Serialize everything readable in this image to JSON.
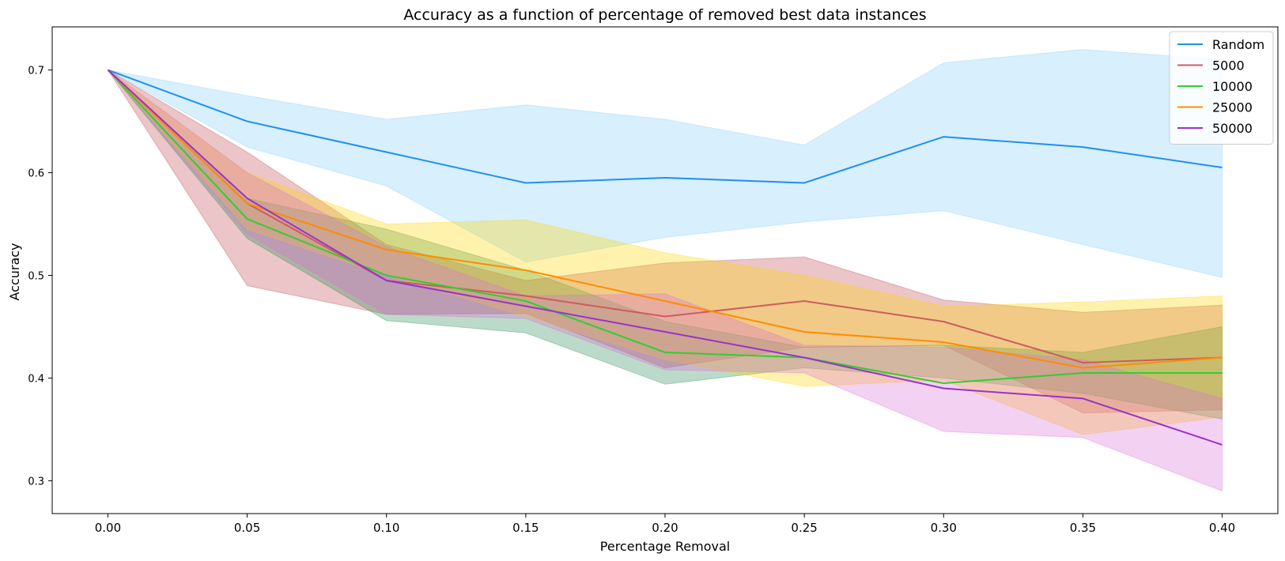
{
  "chart_data": {
    "type": "line",
    "title": "Accuracy as a function of percentage of removed best data instances",
    "xlabel": "Percentage Removal",
    "ylabel": "Accuracy",
    "x": [
      0.0,
      0.05,
      0.1,
      0.15,
      0.2,
      0.25,
      0.3,
      0.35,
      0.4
    ],
    "xticks": [
      "0.00",
      "0.05",
      "0.10",
      "0.15",
      "0.20",
      "0.25",
      "0.30",
      "0.35",
      "0.40"
    ],
    "yticks": [
      "0.3",
      "0.4",
      "0.5",
      "0.6",
      "0.7"
    ],
    "ytick_values": [
      0.3,
      0.4,
      0.5,
      0.6,
      0.7
    ],
    "xlim": [
      -0.02,
      0.42
    ],
    "ylim": [
      0.268,
      0.742
    ],
    "grid": false,
    "legend_position": "top-right",
    "series": [
      {
        "name": "Random",
        "color": "#1e90f0",
        "band_color": "#87cefa",
        "values": [
          0.7,
          0.65,
          0.62,
          0.59,
          0.595,
          0.59,
          0.635,
          0.625,
          0.605
        ],
        "lower": [
          0.7,
          0.625,
          0.587,
          0.513,
          0.537,
          0.552,
          0.563,
          0.53,
          0.498
        ],
        "upper": [
          0.7,
          0.675,
          0.652,
          0.666,
          0.652,
          0.627,
          0.707,
          0.72,
          0.71
        ]
      },
      {
        "name": "5000",
        "color": "#cd5c5c",
        "band_color": "#c04a50",
        "values": [
          0.7,
          0.57,
          0.495,
          0.48,
          0.46,
          0.475,
          0.455,
          0.415,
          0.42
        ],
        "lower": [
          0.7,
          0.49,
          0.462,
          0.463,
          0.41,
          0.43,
          0.432,
          0.366,
          0.369
        ],
        "upper": [
          0.7,
          0.62,
          0.53,
          0.495,
          0.512,
          0.518,
          0.476,
          0.464,
          0.471
        ]
      },
      {
        "name": "10000",
        "color": "#32cd32",
        "band_color": "#2e8b57",
        "values": [
          0.7,
          0.555,
          0.5,
          0.475,
          0.425,
          0.42,
          0.395,
          0.405,
          0.405
        ],
        "lower": [
          0.7,
          0.536,
          0.456,
          0.444,
          0.394,
          0.41,
          0.4,
          0.385,
          0.36
        ],
        "upper": [
          0.7,
          0.575,
          0.545,
          0.505,
          0.455,
          0.43,
          0.432,
          0.425,
          0.45
        ]
      },
      {
        "name": "25000",
        "color": "#ff8c00",
        "band_color": "#ffd700",
        "values": [
          0.7,
          0.57,
          0.525,
          0.505,
          0.475,
          0.445,
          0.435,
          0.41,
          0.42
        ],
        "lower": [
          0.7,
          0.545,
          0.5,
          0.46,
          0.418,
          0.392,
          0.398,
          0.345,
          0.362
        ],
        "upper": [
          0.7,
          0.6,
          0.55,
          0.554,
          0.522,
          0.5,
          0.47,
          0.474,
          0.48
        ]
      },
      {
        "name": "50000",
        "color": "#9932cc",
        "band_color": "#da70d6",
        "values": [
          0.7,
          0.575,
          0.495,
          0.47,
          0.445,
          0.42,
          0.39,
          0.38,
          0.335
        ],
        "lower": [
          0.7,
          0.54,
          0.462,
          0.458,
          0.408,
          0.405,
          0.348,
          0.342,
          0.29
        ],
        "upper": [
          0.7,
          0.6,
          0.528,
          0.48,
          0.482,
          0.432,
          0.43,
          0.418,
          0.38
        ]
      }
    ]
  }
}
